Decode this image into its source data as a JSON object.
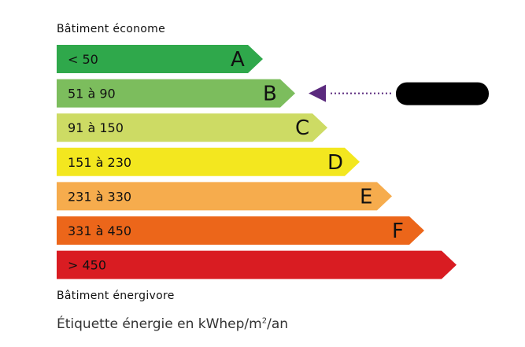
{
  "header_top": "Bâtiment économe",
  "header_bottom": "Bâtiment énergivore",
  "unit_label_prefix": "Étiquette énergie en kWhep/m",
  "unit_label_sup": "2",
  "unit_label_suffix": "/an",
  "classes": [
    {
      "letter": "A",
      "range": "< 50",
      "color": "#2fa84b"
    },
    {
      "letter": "B",
      "range": "51 à 90",
      "color": "#7cbd5d"
    },
    {
      "letter": "C",
      "range": "91 à 150",
      "color": "#cddb64"
    },
    {
      "letter": "D",
      "range": "151 à 230",
      "color": "#f3e71f"
    },
    {
      "letter": "E",
      "range": "231 à 330",
      "color": "#f6ac4d"
    },
    {
      "letter": "F",
      "range": "331 à 450",
      "color": "#ec661a"
    },
    {
      "letter": "",
      "range": "> 450",
      "color": "#d91c22"
    }
  ],
  "indicator": {
    "class": "B",
    "color": "#5b2a7e",
    "label_redacted": true
  }
}
